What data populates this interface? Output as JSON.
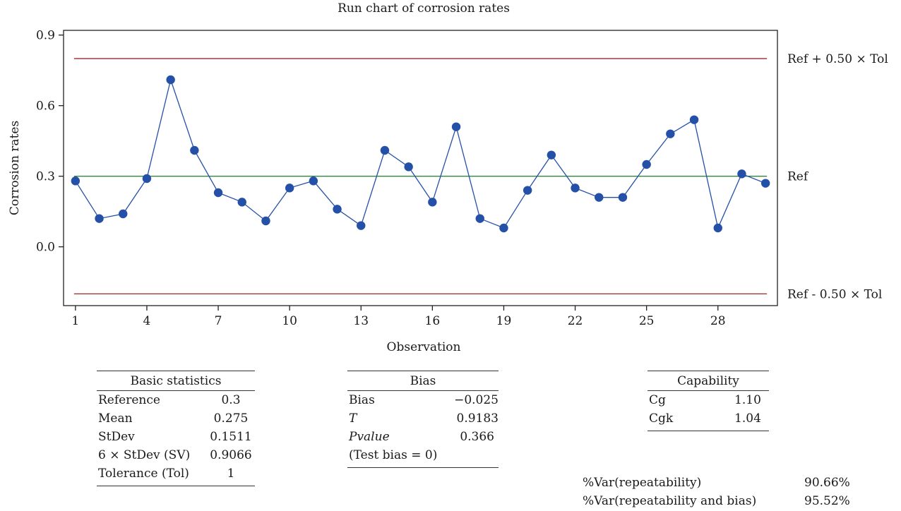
{
  "chart_data": {
    "type": "line",
    "title": "Run chart of corrosion rates",
    "xlabel": "Observation",
    "ylabel": "Corrosion rates",
    "xlim": [
      0.5,
      30.5
    ],
    "ylim": [
      -0.25,
      0.92
    ],
    "x_ticks": [
      1,
      4,
      7,
      10,
      13,
      16,
      19,
      22,
      25,
      28
    ],
    "y_ticks": [
      0.0,
      0.3,
      0.6,
      0.9
    ],
    "y_tick_labels": [
      "0.0",
      "0.3",
      "0.6",
      "0.9"
    ],
    "x": [
      1,
      2,
      3,
      4,
      5,
      6,
      7,
      8,
      9,
      10,
      11,
      12,
      13,
      14,
      15,
      16,
      17,
      18,
      19,
      20,
      21,
      22,
      23,
      24,
      25,
      26,
      27,
      28,
      29,
      30
    ],
    "values": [
      0.28,
      0.12,
      0.14,
      0.29,
      0.71,
      0.41,
      0.23,
      0.19,
      0.11,
      0.25,
      0.28,
      0.16,
      0.09,
      0.41,
      0.34,
      0.19,
      0.51,
      0.12,
      0.08,
      0.24,
      0.39,
      0.25,
      0.21,
      0.21,
      0.35,
      0.48,
      0.54,
      0.08,
      0.31,
      0.27
    ],
    "reference_lines": [
      {
        "label": "Ref + 0.50 × Tol",
        "y": 0.8,
        "color": "#a33a3a"
      },
      {
        "label": "Ref",
        "y": 0.3,
        "color": "#2e8b3e"
      },
      {
        "label": "Ref - 0.50 × Tol",
        "y": -0.2,
        "color": "#a33a3a"
      }
    ],
    "series_color": "#2450a8",
    "grid": false
  },
  "basic_statistics": {
    "title": "Basic statistics",
    "rows": [
      {
        "label": "Reference",
        "value": "0.3"
      },
      {
        "label": "Mean",
        "value": "0.275"
      },
      {
        "label": "StDev",
        "value": "0.1511"
      },
      {
        "label": "6 × StDev (SV)",
        "value": "0.9066"
      },
      {
        "label": "Tolerance (Tol)",
        "value": "1"
      }
    ]
  },
  "bias": {
    "title": "Bias",
    "rows": [
      {
        "label": "Bias",
        "value": "−0.025"
      },
      {
        "label": "T",
        "value": "0.9183"
      },
      {
        "label": "Pvalue",
        "value": "0.366"
      }
    ],
    "note": "(Test bias = 0)"
  },
  "capability": {
    "title": "Capability",
    "rows": [
      {
        "label": "Cg",
        "value": "1.10"
      },
      {
        "label": "Cgk",
        "value": "1.04"
      }
    ]
  },
  "variance": [
    {
      "label": "%Var(repeatability)",
      "value": "90.66%"
    },
    {
      "label": "%Var(repeatability and bias)",
      "value": "95.52%"
    }
  ]
}
